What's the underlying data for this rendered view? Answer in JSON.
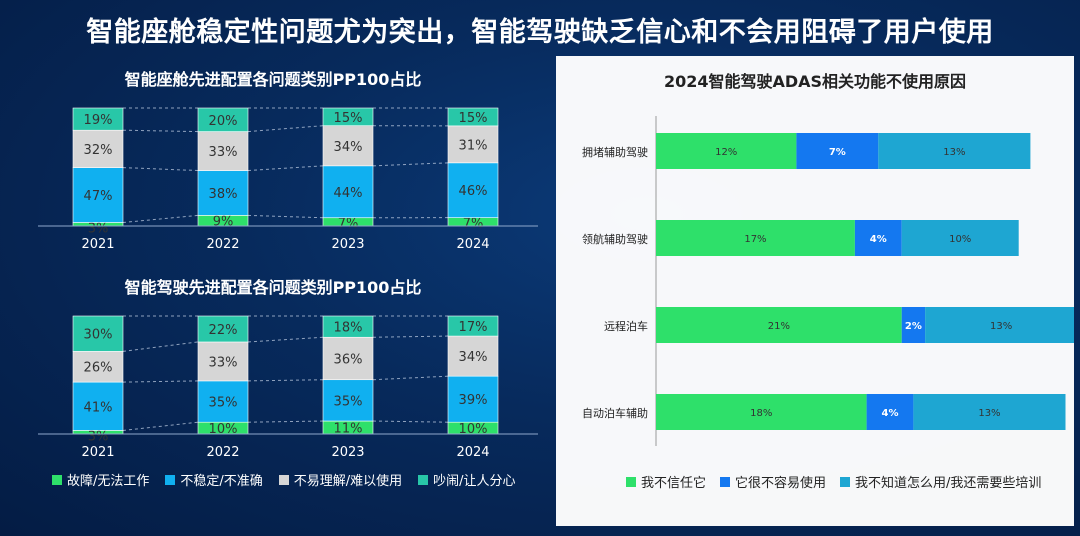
{
  "page_title": "智能座舱稳定性问题尤为突出，智能驾驶缺乏信心和不会用阻碍了用户使用",
  "colors": {
    "fault": "#2ee06a",
    "unstable": "#10b0f0",
    "hard_to_use": "#d6d6d6",
    "noisy": "#28c7a8",
    "r_distrust": "#2ee06a",
    "r_hard": "#1478f0",
    "r_unknown": "#1ea6d2"
  },
  "legend_left": [
    {
      "label": "故障/无法工作",
      "color": "#2ee06a"
    },
    {
      "label": "不稳定/不准确",
      "color": "#10b0f0"
    },
    {
      "label": "不易理解/难以使用",
      "color": "#d6d6d6"
    },
    {
      "label": "吵闹/让人分心",
      "color": "#28c7a8"
    }
  ],
  "legend_right": [
    {
      "label": "我不信任它",
      "color": "#2ee06a"
    },
    {
      "label": "它很不容易使用",
      "color": "#1478f0"
    },
    {
      "label": "我不知道怎么用/我还需要些培训",
      "color": "#1ea6d2"
    }
  ],
  "chart_data": [
    {
      "type": "bar",
      "stacked": true,
      "title": "智能座舱先进配置各问题类别PP100占比",
      "categories": [
        "2021",
        "2022",
        "2023",
        "2024"
      ],
      "series": [
        {
          "name": "故障/无法工作",
          "values": [
            3,
            9,
            7,
            7
          ],
          "labels": [
            "3%",
            "9%",
            "7%",
            "7%"
          ]
        },
        {
          "name": "不稳定/不准确",
          "values": [
            47,
            38,
            44,
            46
          ],
          "labels": [
            "47%",
            "38%",
            "44%",
            "46%"
          ]
        },
        {
          "name": "不易理解/难以使用",
          "values": [
            32,
            33,
            34,
            31
          ],
          "labels": [
            "32%",
            "33%",
            "34%",
            "31%"
          ]
        },
        {
          "name": "吵闹/让人分心",
          "values": [
            19,
            20,
            15,
            15
          ],
          "labels": [
            "19%",
            "20%",
            "15%",
            "15%"
          ]
        }
      ]
    },
    {
      "type": "bar",
      "stacked": true,
      "title": "智能驾驶先进配置各问题类别PP100占比",
      "categories": [
        "2021",
        "2022",
        "2023",
        "2024"
      ],
      "series": [
        {
          "name": "故障/无法工作",
          "values": [
            3,
            10,
            11,
            10
          ],
          "labels": [
            "3%",
            "10%",
            "11%",
            "10%"
          ]
        },
        {
          "name": "不稳定/不准确",
          "values": [
            41,
            35,
            35,
            39
          ],
          "labels": [
            "41%",
            "35%",
            "35%",
            "39%"
          ]
        },
        {
          "name": "不易理解/难以使用",
          "values": [
            26,
            33,
            36,
            34
          ],
          "labels": [
            "26%",
            "33%",
            "36%",
            "34%"
          ]
        },
        {
          "name": "吵闹/让人分心",
          "values": [
            30,
            22,
            18,
            17
          ],
          "labels": [
            "30%",
            "22%",
            "18%",
            "17%"
          ]
        }
      ]
    },
    {
      "type": "bar",
      "orientation": "horizontal",
      "stacked": true,
      "title": "2024智能驾驶ADAS相关功能不使用原因",
      "categories": [
        "拥堵辅助驾驶",
        "领航辅助驾驶",
        "远程泊车",
        "自动泊车辅助"
      ],
      "series": [
        {
          "name": "我不信任它",
          "values": [
            12,
            17,
            21,
            18
          ],
          "labels": [
            "12%",
            "17%",
            "21%",
            "18%"
          ]
        },
        {
          "name": "它很不容易使用",
          "values": [
            7,
            4,
            2,
            4
          ],
          "labels": [
            "7%",
            "4%",
            "2%",
            "4%"
          ]
        },
        {
          "name": "我不知道怎么用/我还需要些培训",
          "values": [
            13,
            10,
            13,
            13
          ],
          "labels": [
            "13%",
            "10%",
            "13%",
            "13%"
          ]
        }
      ]
    }
  ]
}
